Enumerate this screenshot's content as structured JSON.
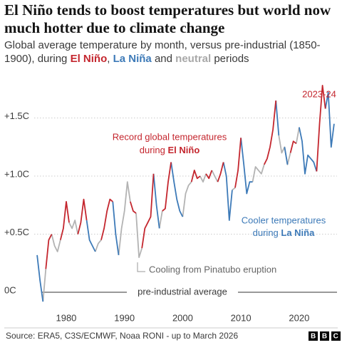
{
  "chart_data": {
    "type": "line",
    "title": "El Niño tends to boost temperatures but world now much hotter due to climate change",
    "subtitle": {
      "start": "Global average temperature by month, versus pre-industrial (1850-1900), during ",
      "el_nino": "El Niño",
      "sep": ", ",
      "la_nina": "La Niña",
      "and": " and ",
      "neutral": "neutral",
      "end": " periods"
    },
    "annotations": {
      "peak": "2023-24",
      "record": {
        "line1": "Record global temperatures",
        "line2": "during ",
        "highlight": "El Niño"
      },
      "cooler": {
        "line1": "Cooler temperatures",
        "line2": "during ",
        "highlight": "La Niña"
      },
      "pinatubo": "Cooling from Pinatubo eruption",
      "baseline": "pre-industrial average"
    },
    "source": "Source: ERA5, C3S/ECMWF, Noaa RONI - up to March 2026",
    "logo": "BBC",
    "xlim": [
      1974.5,
      2026.5
    ],
    "xticks": [
      1980,
      1990,
      2000,
      2010,
      2020
    ],
    "ylim": [
      -0.15,
      1.85
    ],
    "yticks": [
      {
        "value": 0,
        "label": "0C"
      },
      {
        "value": 0.5,
        "label": "+0.5C"
      },
      {
        "value": 1.0,
        "label": "+1.0C"
      },
      {
        "value": 1.5,
        "label": "+1.5C"
      }
    ],
    "grid": true,
    "x": [
      1975,
      1975.5,
      1976,
      1976.5,
      1977,
      1977.5,
      1978,
      1978.5,
      1979,
      1979.5,
      1980,
      1980.5,
      1981,
      1981.5,
      1982,
      1982.5,
      1983,
      1983.5,
      1984,
      1984.5,
      1985,
      1985.5,
      1986,
      1986.5,
      1987,
      1987.5,
      1988,
      1988.5,
      1989,
      1989.5,
      1990,
      1990.5,
      1991,
      1991.5,
      1992,
      1992.5,
      1993,
      1993.5,
      1994,
      1994.5,
      1995,
      1995.5,
      1996,
      1996.5,
      1997,
      1997.5,
      1998,
      1998.5,
      1999,
      1999.5,
      2000,
      2000.5,
      2001,
      2001.5,
      2002,
      2002.5,
      2003,
      2003.5,
      2004,
      2004.5,
      2005,
      2005.5,
      2006,
      2006.5,
      2007,
      2007.5,
      2008,
      2008.5,
      2009,
      2009.5,
      2010,
      2010.5,
      2011,
      2011.5,
      2012,
      2012.5,
      2013,
      2013.5,
      2014,
      2014.5,
      2015,
      2015.5,
      2016,
      2016.5,
      2017,
      2017.5,
      2018,
      2018.5,
      2019,
      2019.5,
      2020,
      2020.5,
      2021,
      2021.5,
      2022,
      2022.5,
      2023,
      2023.5,
      2024,
      2024.5,
      2025,
      2025.5,
      2026
    ],
    "series": [
      {
        "name": "neutral",
        "color": "#b3b3b3",
        "values": [
          null,
          null,
          -0.08,
          0.2,
          null,
          0.5,
          0.4,
          0.35,
          0.45,
          null,
          null,
          0.6,
          0.55,
          0.62,
          0.5,
          null,
          null,
          null,
          null,
          null,
          0.35,
          0.42,
          0.45,
          null,
          null,
          null,
          null,
          null,
          0.32,
          0.55,
          0.7,
          0.95,
          0.78,
          null,
          0.68,
          0.3,
          0.38,
          null,
          null,
          null,
          null,
          null,
          0.55,
          0.7,
          null,
          null,
          null,
          null,
          null,
          null,
          0.65,
          0.85,
          0.92,
          0.95,
          null,
          null,
          1.0,
          0.95,
          1.02,
          null,
          1.05,
          1.0,
          0.95,
          null,
          null,
          null,
          null,
          0.88,
          0.9,
          null,
          null,
          null,
          null,
          null,
          0.95,
          1.08,
          1.05,
          1.02,
          1.1,
          null,
          null,
          null,
          null,
          1.35,
          1.2,
          1.25,
          1.1,
          1.2,
          null,
          1.28,
          1.42,
          null,
          null,
          null,
          null,
          null,
          null,
          null,
          null,
          null,
          null,
          null,
          null
        ]
      },
      {
        "name": "La Niña",
        "color": "#3d7ab8",
        "values": [
          0.32,
          0.1,
          -0.08,
          null,
          null,
          null,
          null,
          null,
          null,
          null,
          null,
          null,
          null,
          null,
          null,
          null,
          null,
          0.62,
          0.45,
          0.4,
          0.35,
          null,
          null,
          null,
          null,
          null,
          0.78,
          0.5,
          0.32,
          null,
          null,
          null,
          null,
          null,
          null,
          null,
          null,
          null,
          null,
          null,
          1.02,
          0.75,
          0.55,
          null,
          null,
          null,
          1.12,
          0.95,
          0.8,
          0.7,
          0.65,
          null,
          null,
          null,
          null,
          null,
          null,
          null,
          null,
          null,
          null,
          null,
          null,
          null,
          1.12,
          1.0,
          0.62,
          0.88,
          null,
          null,
          1.33,
          1.1,
          0.85,
          0.95,
          0.95,
          null,
          null,
          null,
          null,
          null,
          null,
          null,
          1.65,
          1.35,
          null,
          1.25,
          1.1,
          null,
          null,
          null,
          1.42,
          1.3,
          1.02,
          1.18,
          1.15,
          1.12,
          1.04,
          null,
          null,
          1.58,
          1.72,
          1.25,
          1.45
        ]
      },
      {
        "name": "El Niño",
        "color": "#c4262e",
        "values": [
          null,
          null,
          null,
          0.2,
          0.45,
          0.5,
          null,
          null,
          0.45,
          0.55,
          0.78,
          0.6,
          null,
          null,
          0.5,
          0.6,
          0.8,
          0.62,
          null,
          null,
          null,
          null,
          0.45,
          0.55,
          0.7,
          0.8,
          0.78,
          null,
          null,
          null,
          null,
          null,
          0.78,
          0.7,
          0.68,
          null,
          0.38,
          0.55,
          0.6,
          0.65,
          1.02,
          null,
          null,
          0.7,
          0.72,
          0.95,
          1.12,
          null,
          null,
          null,
          null,
          null,
          null,
          0.95,
          1.05,
          0.98,
          1.0,
          null,
          1.02,
          0.98,
          1.05,
          null,
          0.95,
          1.02,
          1.12,
          null,
          null,
          null,
          0.9,
          1.05,
          1.33,
          null,
          null,
          null,
          null,
          null,
          null,
          null,
          1.1,
          1.15,
          1.25,
          1.4,
          1.65,
          null,
          null,
          null,
          null,
          1.2,
          1.3,
          1.28,
          null,
          null,
          null,
          null,
          null,
          null,
          1.04,
          1.45,
          1.78,
          1.58,
          null,
          null,
          null
        ]
      }
    ]
  }
}
